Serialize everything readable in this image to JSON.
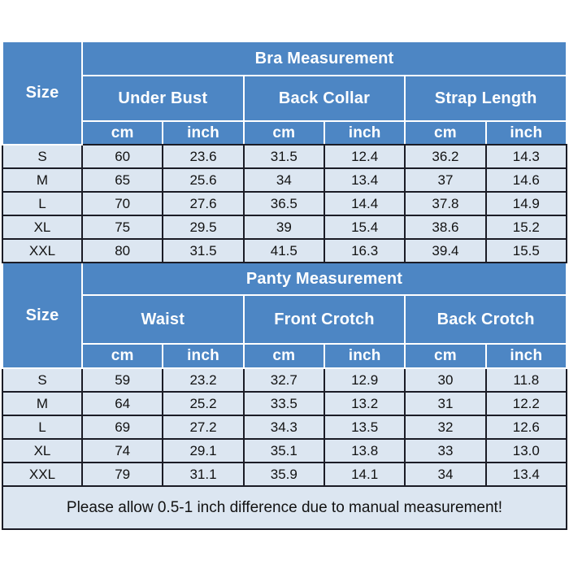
{
  "colors": {
    "header_blue": "#4d86c4",
    "row_bg": "#dce6f1",
    "border_dark": "#1b1c26",
    "header_text": "#ffffff",
    "data_text": "#121212",
    "page_bg": "#ffffff"
  },
  "bra": {
    "size_label": "Size",
    "title": "Bra Measurement",
    "groups": [
      "Under Bust",
      "Back Collar",
      "Strap Length"
    ],
    "units": [
      "cm",
      "inch",
      "cm",
      "inch",
      "cm",
      "inch"
    ],
    "rows": [
      [
        "S",
        "60",
        "23.6",
        "31.5",
        "12.4",
        "36.2",
        "14.3"
      ],
      [
        "M",
        "65",
        "25.6",
        "34",
        "13.4",
        "37",
        "14.6"
      ],
      [
        "L",
        "70",
        "27.6",
        "36.5",
        "14.4",
        "37.8",
        "14.9"
      ],
      [
        "XL",
        "75",
        "29.5",
        "39",
        "15.4",
        "38.6",
        "15.2"
      ],
      [
        "XXL",
        "80",
        "31.5",
        "41.5",
        "16.3",
        "39.4",
        "15.5"
      ]
    ]
  },
  "panty": {
    "size_label": "Size",
    "title": "Panty Measurement",
    "groups": [
      "Waist",
      "Front Crotch",
      "Back Crotch"
    ],
    "units": [
      "cm",
      "inch",
      "cm",
      "inch",
      "cm",
      "inch"
    ],
    "rows": [
      [
        "S",
        "59",
        "23.2",
        "32.7",
        "12.9",
        "30",
        "11.8"
      ],
      [
        "M",
        "64",
        "25.2",
        "33.5",
        "13.2",
        "31",
        "12.2"
      ],
      [
        "L",
        "69",
        "27.2",
        "34.3",
        "13.5",
        "32",
        "12.6"
      ],
      [
        "XL",
        "74",
        "29.1",
        "35.1",
        "13.8",
        "33",
        "13.0"
      ],
      [
        "XXL",
        "79",
        "31.1",
        "35.9",
        "14.1",
        "34",
        "13.4"
      ]
    ]
  },
  "note": "Please allow 0.5-1 inch difference due to manual measurement!",
  "chart_data": [
    {
      "type": "table",
      "title": "Bra Measurement",
      "column_groups": [
        "Under Bust",
        "Back Collar",
        "Strap Length"
      ],
      "columns": [
        "Size",
        "Under Bust cm",
        "Under Bust inch",
        "Back Collar cm",
        "Back Collar inch",
        "Strap Length cm",
        "Strap Length inch"
      ],
      "rows": [
        [
          "S",
          60,
          23.6,
          31.5,
          12.4,
          36.2,
          14.3
        ],
        [
          "M",
          65,
          25.6,
          34,
          13.4,
          37,
          14.6
        ],
        [
          "L",
          70,
          27.6,
          36.5,
          14.4,
          37.8,
          14.9
        ],
        [
          "XL",
          75,
          29.5,
          39,
          15.4,
          38.6,
          15.2
        ],
        [
          "XXL",
          80,
          31.5,
          41.5,
          16.3,
          39.4,
          15.5
        ]
      ]
    },
    {
      "type": "table",
      "title": "Panty Measurement",
      "column_groups": [
        "Waist",
        "Front Crotch",
        "Back Crotch"
      ],
      "columns": [
        "Size",
        "Waist cm",
        "Waist inch",
        "Front Crotch cm",
        "Front Crotch inch",
        "Back Crotch cm",
        "Back Crotch inch"
      ],
      "rows": [
        [
          "S",
          59,
          23.2,
          32.7,
          12.9,
          30,
          11.8
        ],
        [
          "M",
          64,
          25.2,
          33.5,
          13.2,
          31,
          12.2
        ],
        [
          "L",
          69,
          27.2,
          34.3,
          13.5,
          32,
          12.6
        ],
        [
          "XL",
          74,
          29.1,
          35.1,
          13.8,
          33,
          13.0
        ],
        [
          "XXL",
          79,
          31.1,
          35.9,
          14.1,
          34,
          13.4
        ]
      ],
      "footnote": "Please allow 0.5-1 inch difference due to manual measurement!"
    }
  ]
}
